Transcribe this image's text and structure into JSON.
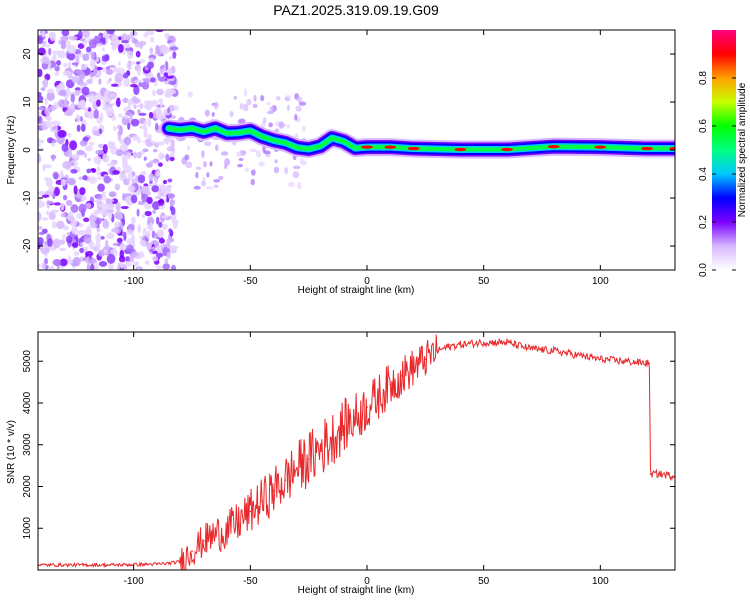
{
  "title": "PAZ1.2025.319.09.19.G09",
  "chart_data": [
    {
      "type": "heatmap",
      "xlabel": "Height of straight line (km)",
      "ylabel": "Frequency (Hz)",
      "xlim": [
        -141,
        132
      ],
      "ylim": [
        -25,
        25
      ],
      "xticks": [
        -100,
        -50,
        0,
        50,
        100
      ],
      "yticks": [
        -20,
        -10,
        0,
        10,
        20
      ],
      "xtick_labels": [
        "-100",
        "-50",
        "0",
        "50",
        "100"
      ],
      "ytick_labels": [
        "-20",
        "-10",
        "0",
        "10",
        "20"
      ],
      "colorbar": {
        "label": "Normalized spectral amplitude",
        "range": [
          0,
          1
        ],
        "ticks": [
          0.0,
          0.2,
          0.4,
          0.6,
          0.8
        ],
        "tick_labels": [
          "0.0",
          "0.2",
          "0.4",
          "0.6",
          "0.8"
        ],
        "colors": [
          "#ffffff",
          "#d6b8ff",
          "#7b00ff",
          "#0000ff",
          "#00c8ff",
          "#00ff80",
          "#00ff00",
          "#c8ff00",
          "#ffa000",
          "#ff0000",
          "#ff0080"
        ]
      },
      "noise_region_x": [
        -141,
        -82
      ],
      "ridge": [
        {
          "x": -85,
          "y": 4.5
        },
        {
          "x": -80,
          "y": 4.2
        },
        {
          "x": -75,
          "y": 4.5
        },
        {
          "x": -70,
          "y": 3.8
        },
        {
          "x": -65,
          "y": 4.5
        },
        {
          "x": -60,
          "y": 3.5
        },
        {
          "x": -55,
          "y": 3.6
        },
        {
          "x": -50,
          "y": 4.0
        },
        {
          "x": -45,
          "y": 2.8
        },
        {
          "x": -40,
          "y": 2.0
        },
        {
          "x": -35,
          "y": 1.5
        },
        {
          "x": -30,
          "y": 0.5
        },
        {
          "x": -25,
          "y": 0.2
        },
        {
          "x": -20,
          "y": 0.8
        },
        {
          "x": -15,
          "y": 2.5
        },
        {
          "x": -10,
          "y": 1.8
        },
        {
          "x": -5,
          "y": 0.4
        },
        {
          "x": 0,
          "y": 0.6
        },
        {
          "x": 10,
          "y": 0.6
        },
        {
          "x": 20,
          "y": 0.3
        },
        {
          "x": 40,
          "y": 0.1
        },
        {
          "x": 60,
          "y": 0.1
        },
        {
          "x": 80,
          "y": 0.7
        },
        {
          "x": 100,
          "y": 0.6
        },
        {
          "x": 120,
          "y": 0.3
        },
        {
          "x": 132,
          "y": 0.3
        }
      ],
      "ridge_color": "#ff0000"
    },
    {
      "type": "line",
      "xlabel": "Height of straight line (km)",
      "ylabel": "SNR (10 * v/v)",
      "xlim": [
        -141,
        132
      ],
      "ylim": [
        0,
        5700
      ],
      "xticks": [
        -100,
        -50,
        0,
        50,
        100
      ],
      "yticks": [
        1000,
        2000,
        3000,
        4000,
        5000
      ],
      "xtick_labels": [
        "-100",
        "-50",
        "0",
        "50",
        "100"
      ],
      "ytick_labels": [
        "1000",
        "2000",
        "3000",
        "4000",
        "5000"
      ],
      "series": [
        {
          "name": "SNR",
          "color": "#e8282b",
          "x": [
            -141,
            -130,
            -120,
            -110,
            -100,
            -90,
            -85,
            -80,
            -75,
            -70,
            -65,
            -60,
            -55,
            -50,
            -45,
            -40,
            -35,
            -30,
            -25,
            -20,
            -15,
            -10,
            -5,
            0,
            5,
            10,
            15,
            20,
            25,
            30,
            35,
            40,
            50,
            60,
            70,
            80,
            90,
            100,
            110,
            121,
            121.5,
            125,
            132
          ],
          "y": [
            120,
            120,
            120,
            120,
            130,
            140,
            160,
            200,
            450,
            700,
            850,
            950,
            1150,
            1400,
            1650,
            1900,
            2150,
            2450,
            2650,
            2900,
            3150,
            3450,
            3650,
            3900,
            4150,
            4450,
            4650,
            4850,
            5050,
            5250,
            5350,
            5400,
            5450,
            5450,
            5300,
            5250,
            5150,
            5050,
            5000,
            4950,
            2300,
            2300,
            2250
          ]
        }
      ]
    }
  ]
}
